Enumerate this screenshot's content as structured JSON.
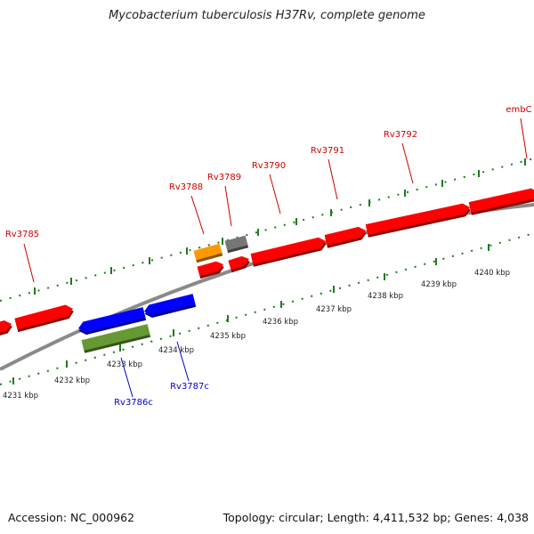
{
  "title": "Mycobacterium tuberculosis H37Rv, complete genome",
  "footer": {
    "accession": "Accession: NC_000962",
    "info": "Topology: circular; Length: 4,411,532 bp; Genes: 4,038"
  },
  "colors": {
    "background": "#ffffff",
    "backbone": "#8a8a8a",
    "tick": "#1f7a1f",
    "forward_label": "#cc0000",
    "reverse_label": "#0000cc",
    "kbp_label": "#222222"
  },
  "kbp_ticks": [
    {
      "label": "4231 kbp"
    },
    {
      "label": "4232 kbp"
    },
    {
      "label": "4233 kbp"
    },
    {
      "label": "4234 kbp"
    },
    {
      "label": "4235 kbp"
    },
    {
      "label": "4236 kbp"
    },
    {
      "label": "4237 kbp"
    },
    {
      "label": "4238 kbp"
    },
    {
      "label": "4239 kbp"
    },
    {
      "label": "4240 kbp"
    }
  ],
  "forward_labels": [
    "Rv3785",
    "Rv3788",
    "Rv3789",
    "Rv3790",
    "Rv3791",
    "Rv3792",
    "embC"
  ],
  "reverse_labels": [
    "Rv3786c",
    "Rv3787c"
  ],
  "features": [
    {
      "name": "forward-gene-0",
      "color": "#ff0000",
      "strand": "forward"
    },
    {
      "name": "forward-gene-rv3785-region",
      "color": "#ff0000",
      "strand": "forward"
    },
    {
      "name": "gene-rv3788",
      "color": "#ff9900",
      "strand": "forward"
    },
    {
      "name": "gene-rv3789",
      "color": "#777777",
      "strand": "forward"
    },
    {
      "name": "gene-rv3788-cds",
      "color": "#ff0000",
      "strand": "forward"
    },
    {
      "name": "gene-rv3789-cds",
      "color": "#ff0000",
      "strand": "forward"
    },
    {
      "name": "gene-rv3790",
      "color": "#ff0000",
      "strand": "forward"
    },
    {
      "name": "gene-rv3791",
      "color": "#ff0000",
      "strand": "forward"
    },
    {
      "name": "gene-rv3792",
      "color": "#ff0000",
      "strand": "forward"
    },
    {
      "name": "gene-embc",
      "color": "#ff0000",
      "strand": "forward"
    },
    {
      "name": "gene-rv3786c-upper",
      "color": "#0000ff",
      "strand": "reverse"
    },
    {
      "name": "gene-rv3787c",
      "color": "#0000ff",
      "strand": "reverse"
    },
    {
      "name": "gene-rv3786c",
      "color": "#669933",
      "strand": "reverse"
    }
  ]
}
